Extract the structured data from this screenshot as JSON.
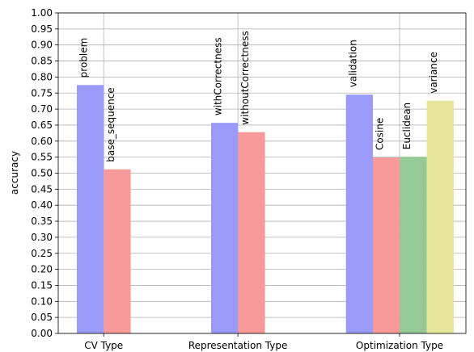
{
  "chart_data": {
    "type": "bar",
    "ylabel": "accuracy",
    "ylim": [
      0,
      1
    ],
    "ytick_step": 0.05,
    "grid": true,
    "groups": [
      {
        "name": "CV Type",
        "bars": [
          {
            "label": "problem",
            "value": 0.775,
            "color": "#9a9af8"
          },
          {
            "label": "base_sequence",
            "value": 0.512,
            "color": "#f89a9a"
          }
        ]
      },
      {
        "name": "Representation Type",
        "bars": [
          {
            "label": "withCorrectness",
            "value": 0.657,
            "color": "#9a9af8"
          },
          {
            "label": "withoutCorrectness",
            "value": 0.628,
            "color": "#f89a9a"
          }
        ]
      },
      {
        "name": "Optimization Type",
        "bars": [
          {
            "label": "validation",
            "value": 0.745,
            "color": "#9a9af8"
          },
          {
            "label": "Cosine",
            "value": 0.549,
            "color": "#f89a9a"
          },
          {
            "label": "Euclidean",
            "value": 0.551,
            "color": "#95c995"
          },
          {
            "label": "variance",
            "value": 0.726,
            "color": "#e6e69a"
          }
        ]
      }
    ]
  }
}
